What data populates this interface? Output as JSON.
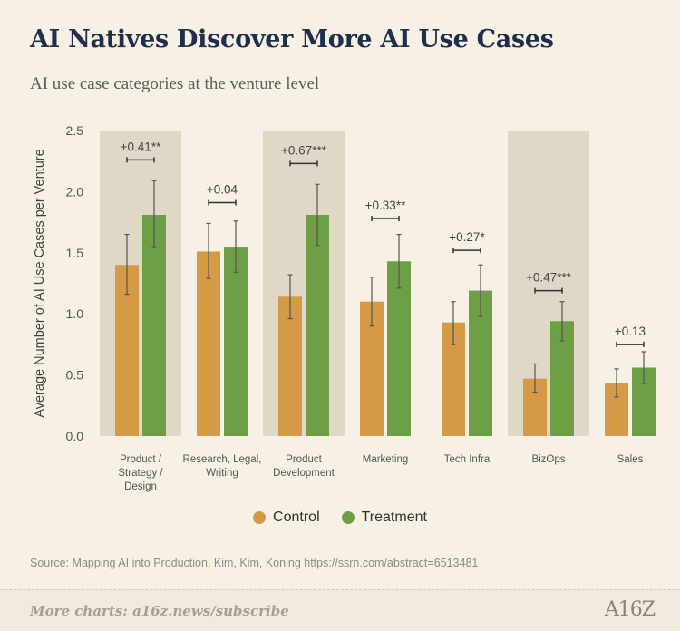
{
  "header": {
    "title": "AI Natives Discover More AI Use Cases",
    "subtitle": "AI use case categories at the venture level"
  },
  "colors": {
    "control": "#d49a45",
    "treatment": "#6e9e46",
    "shade": "#e0d8c7",
    "title": "#1f2f4a"
  },
  "legend": {
    "control": "Control",
    "treatment": "Treatment"
  },
  "source": "Source: Mapping AI into Production, Kim, Kim, Koning https://ssrn.com/abstract=6513481",
  "footer": {
    "link": "More charts: a16z.news/subscribe",
    "logo": "A16Z"
  },
  "chart_data": {
    "type": "bar",
    "ylabel": "Average Number of AI Use Cases per Venture",
    "ylim": [
      0,
      2.5
    ],
    "yticks": [
      "0.0",
      "0.5",
      "1.0",
      "1.5",
      "2.0",
      "2.5"
    ],
    "categories": [
      [
        "Product /",
        "Strategy /",
        "Design"
      ],
      [
        "Research, Legal,",
        "Writing"
      ],
      [
        "Product",
        "Development"
      ],
      [
        "Marketing"
      ],
      [
        "Tech Infra"
      ],
      [
        "BizOps"
      ],
      [
        "Sales"
      ]
    ],
    "shaded": [
      true,
      false,
      true,
      false,
      false,
      true,
      false
    ],
    "series": [
      {
        "name": "Control",
        "values": [
          1.4,
          1.51,
          1.14,
          1.1,
          0.93,
          0.47,
          0.43
        ],
        "error_low": [
          1.16,
          1.29,
          0.96,
          0.9,
          0.75,
          0.36,
          0.32
        ],
        "error_high": [
          1.65,
          1.74,
          1.32,
          1.3,
          1.1,
          0.59,
          0.55
        ]
      },
      {
        "name": "Treatment",
        "values": [
          1.81,
          1.55,
          1.81,
          1.43,
          1.19,
          0.94,
          0.56
        ],
        "error_low": [
          1.55,
          1.34,
          1.56,
          1.21,
          0.98,
          0.78,
          0.43
        ],
        "error_high": [
          2.09,
          1.76,
          2.06,
          1.65,
          1.4,
          1.1,
          0.69
        ]
      }
    ],
    "differences": [
      "+0.41**",
      "+0.04",
      "+0.67***",
      "+0.33**",
      "+0.27*",
      "+0.47***",
      "+0.13"
    ],
    "difference_levels": [
      2.26,
      1.91,
      2.23,
      1.78,
      1.52,
      1.19,
      0.75
    ],
    "grid": false,
    "legend_position": "bottom-center"
  }
}
